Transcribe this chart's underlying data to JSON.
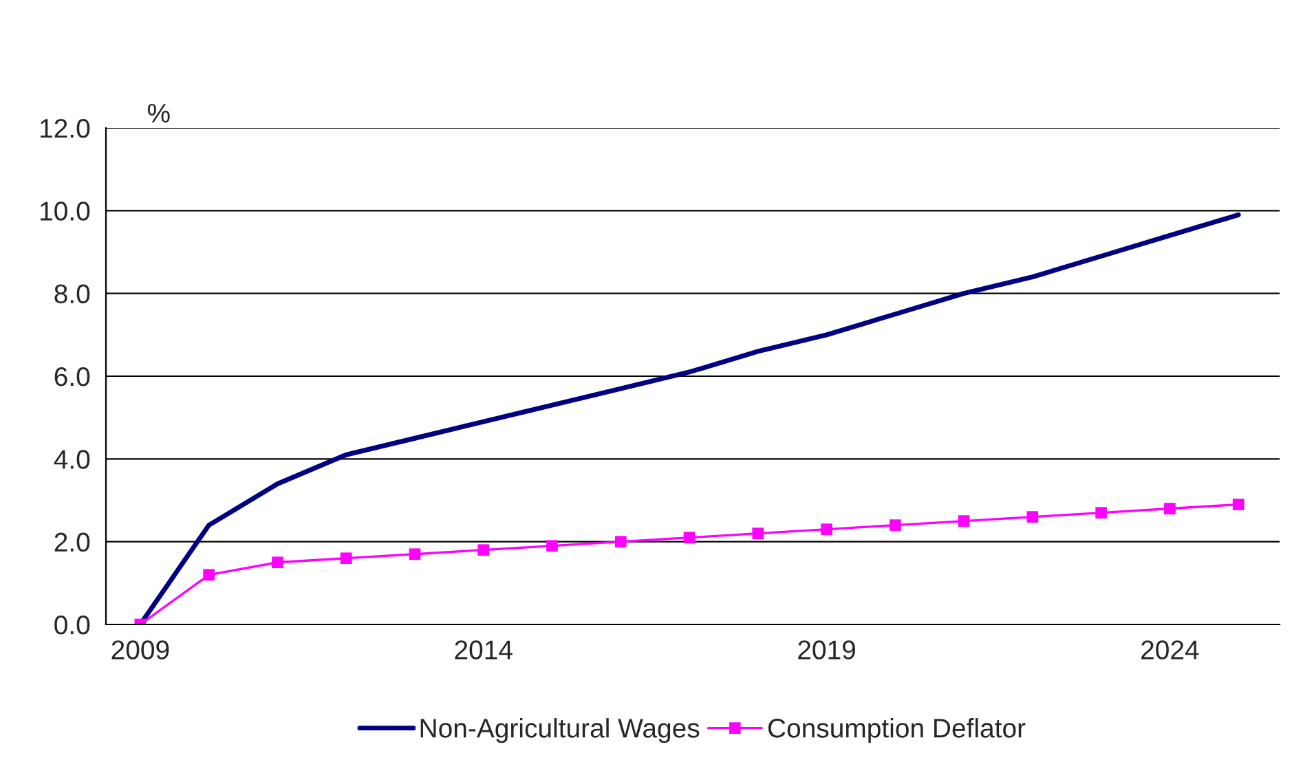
{
  "chart_data": {
    "type": "line",
    "ylabel": "%",
    "x": [
      2009,
      2010,
      2011,
      2012,
      2013,
      2014,
      2015,
      2016,
      2017,
      2018,
      2019,
      2020,
      2021,
      2022,
      2023,
      2024,
      2025
    ],
    "series": [
      {
        "name": "Non-Agricultural Wages",
        "color": "#000080",
        "marker": "none",
        "values": [
          0.0,
          2.4,
          3.4,
          4.1,
          4.5,
          4.9,
          5.3,
          5.7,
          6.1,
          6.6,
          7.0,
          7.5,
          8.0,
          8.4,
          8.9,
          9.4,
          9.9
        ]
      },
      {
        "name": "Consumption Deflator",
        "color": "#ff00ff",
        "marker": "square",
        "values": [
          0.0,
          1.2,
          1.5,
          1.6,
          1.7,
          1.8,
          1.9,
          2.0,
          2.1,
          2.2,
          2.3,
          2.4,
          2.5,
          2.6,
          2.7,
          2.8,
          2.9
        ]
      }
    ],
    "xlim": [
      2008.5,
      2025.6
    ],
    "xticks": [
      2009,
      2014,
      2019,
      2024
    ],
    "ylim": [
      0,
      12
    ],
    "yticks": [
      {
        "value": 0,
        "label": "0.0"
      },
      {
        "value": 2,
        "label": "2.0"
      },
      {
        "value": 4,
        "label": "4.0"
      },
      {
        "value": 6,
        "label": "6.0"
      },
      {
        "value": 8,
        "label": "8.0"
      },
      {
        "value": 10,
        "label": "10.0"
      },
      {
        "value": 12,
        "label": "12.0"
      }
    ],
    "grid": "y",
    "legend": "bottom"
  }
}
